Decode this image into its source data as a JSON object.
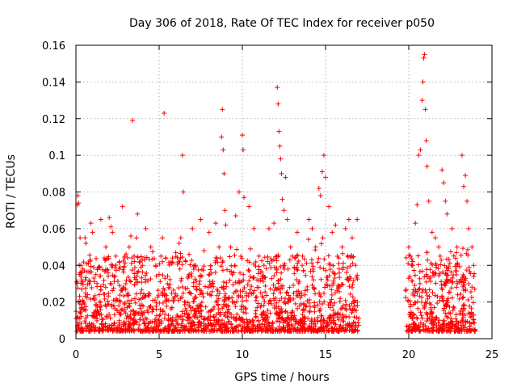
{
  "chart_data": {
    "type": "scatter",
    "title": "Day 306 of 2018, Rate Of TEC Index for receiver p050",
    "xlabel": "GPS time / hours",
    "ylabel": "ROTI / TECUs",
    "xlim": [
      0,
      25
    ],
    "ylim": [
      0,
      0.16
    ],
    "xticks": [
      0,
      5,
      10,
      15,
      20,
      25
    ],
    "xtick_labels": [
      "0",
      "5",
      "10",
      "15",
      "20",
      "25"
    ],
    "yticks": [
      0,
      0.02,
      0.04,
      0.06,
      0.08,
      0.1,
      0.12,
      0.14,
      0.16
    ],
    "ytick_labels": [
      "0",
      "0.02",
      "0.04",
      "0.06",
      "0.08",
      "0.1",
      "0.12",
      "0.14",
      "0.16"
    ],
    "grid": true,
    "marker": "plus",
    "series_color": "#ff0000",
    "data_gap_hours": [
      17.0,
      19.8
    ],
    "series": [
      {
        "name": "ROTI",
        "points": [
          [
            0.05,
            0.031
          ],
          [
            0.1,
            0.073
          ],
          [
            0.12,
            0.078
          ],
          [
            0.15,
            0.074
          ],
          [
            0.2,
            0.035
          ],
          [
            0.25,
            0.055
          ],
          [
            0.3,
            0.04
          ],
          [
            0.35,
            0.027
          ],
          [
            0.4,
            0.021
          ],
          [
            0.45,
            0.016
          ],
          [
            0.5,
            0.019
          ],
          [
            0.55,
            0.055
          ],
          [
            0.6,
            0.052
          ],
          [
            0.8,
            0.03
          ],
          [
            0.9,
            0.063
          ],
          [
            1.0,
            0.058
          ],
          [
            1.2,
            0.035
          ],
          [
            1.4,
            0.024
          ],
          [
            1.5,
            0.065
          ],
          [
            1.8,
            0.05
          ],
          [
            2.0,
            0.066
          ],
          [
            2.1,
            0.061
          ],
          [
            2.2,
            0.058
          ],
          [
            2.4,
            0.045
          ],
          [
            2.6,
            0.038
          ],
          [
            2.8,
            0.072
          ],
          [
            3.0,
            0.03
          ],
          [
            3.2,
            0.05
          ],
          [
            3.3,
            0.056
          ],
          [
            3.4,
            0.119
          ],
          [
            3.5,
            0.045
          ],
          [
            3.7,
            0.068
          ],
          [
            4.0,
            0.04
          ],
          [
            4.2,
            0.06
          ],
          [
            4.5,
            0.05
          ],
          [
            4.8,
            0.04
          ],
          [
            5.0,
            0.035
          ],
          [
            5.2,
            0.055
          ],
          [
            5.3,
            0.123
          ],
          [
            5.5,
            0.03
          ],
          [
            5.8,
            0.044
          ],
          [
            6.0,
            0.047
          ],
          [
            6.2,
            0.052
          ],
          [
            6.3,
            0.055
          ],
          [
            6.4,
            0.1
          ],
          [
            6.45,
            0.08
          ],
          [
            6.8,
            0.046
          ],
          [
            7.0,
            0.06
          ],
          [
            7.2,
            0.04
          ],
          [
            7.5,
            0.065
          ],
          [
            7.7,
            0.048
          ],
          [
            8.0,
            0.058
          ],
          [
            8.2,
            0.03
          ],
          [
            8.4,
            0.063
          ],
          [
            8.6,
            0.05
          ],
          [
            8.75,
            0.11
          ],
          [
            8.8,
            0.125
          ],
          [
            8.85,
            0.103
          ],
          [
            8.9,
            0.09
          ],
          [
            8.95,
            0.07
          ],
          [
            9.0,
            0.062
          ],
          [
            9.3,
            0.05
          ],
          [
            9.6,
            0.067
          ],
          [
            9.8,
            0.08
          ],
          [
            10.0,
            0.111
          ],
          [
            10.05,
            0.103
          ],
          [
            10.1,
            0.077
          ],
          [
            10.4,
            0.072
          ],
          [
            10.7,
            0.06
          ],
          [
            11.0,
            0.045
          ],
          [
            11.3,
            0.04
          ],
          [
            11.6,
            0.06
          ],
          [
            11.9,
            0.063
          ],
          [
            12.1,
            0.137
          ],
          [
            12.15,
            0.128
          ],
          [
            12.2,
            0.113
          ],
          [
            12.25,
            0.105
          ],
          [
            12.3,
            0.098
          ],
          [
            12.35,
            0.09
          ],
          [
            12.4,
            0.076
          ],
          [
            12.5,
            0.07
          ],
          [
            12.6,
            0.088
          ],
          [
            12.7,
            0.065
          ],
          [
            12.9,
            0.05
          ],
          [
            13.0,
            0.045
          ],
          [
            13.3,
            0.058
          ],
          [
            13.6,
            0.04
          ],
          [
            14.0,
            0.065
          ],
          [
            14.2,
            0.06
          ],
          [
            14.4,
            0.05
          ],
          [
            14.6,
            0.082
          ],
          [
            14.7,
            0.078
          ],
          [
            14.8,
            0.091
          ],
          [
            14.9,
            0.1
          ],
          [
            15.0,
            0.088
          ],
          [
            15.2,
            0.072
          ],
          [
            15.4,
            0.058
          ],
          [
            15.6,
            0.062
          ],
          [
            15.8,
            0.044
          ],
          [
            16.0,
            0.05
          ],
          [
            16.2,
            0.06
          ],
          [
            16.4,
            0.065
          ],
          [
            16.6,
            0.055
          ],
          [
            16.8,
            0.04
          ],
          [
            16.9,
            0.065
          ],
          [
            20.0,
            0.05
          ],
          [
            20.1,
            0.045
          ],
          [
            20.2,
            0.04
          ],
          [
            20.4,
            0.063
          ],
          [
            20.5,
            0.073
          ],
          [
            20.6,
            0.1
          ],
          [
            20.7,
            0.103
          ],
          [
            20.8,
            0.13
          ],
          [
            20.85,
            0.14
          ],
          [
            20.9,
            0.153
          ],
          [
            20.95,
            0.155
          ],
          [
            21.0,
            0.125
          ],
          [
            21.05,
            0.108
          ],
          [
            21.1,
            0.094
          ],
          [
            21.2,
            0.075
          ],
          [
            21.4,
            0.058
          ],
          [
            21.6,
            0.055
          ],
          [
            21.8,
            0.05
          ],
          [
            22.0,
            0.092
          ],
          [
            22.1,
            0.085
          ],
          [
            22.2,
            0.075
          ],
          [
            22.3,
            0.068
          ],
          [
            22.6,
            0.06
          ],
          [
            22.9,
            0.05
          ],
          [
            23.2,
            0.1
          ],
          [
            23.3,
            0.083
          ],
          [
            23.4,
            0.089
          ],
          [
            23.5,
            0.075
          ],
          [
            23.6,
            0.06
          ],
          [
            23.8,
            0.05
          ],
          [
            23.9,
            0.04
          ]
        ],
        "baseline_band": [
          0.004,
          0.03
        ]
      }
    ]
  }
}
